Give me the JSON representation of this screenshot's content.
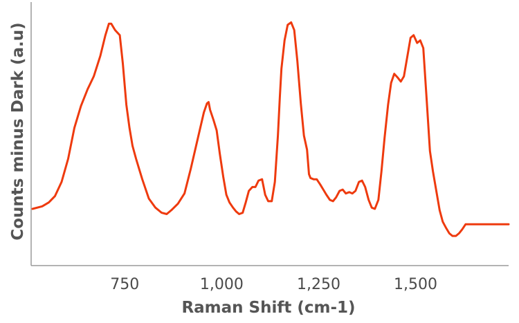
{
  "chart_data": {
    "type": "line",
    "xlabel": "Raman Shift (cm-1)",
    "ylabel": "Counts minus Dark (a.u)",
    "xlim": [
      512,
      1740
    ],
    "ylim": [
      0,
      1
    ],
    "x_ticks": [
      {
        "value": 750,
        "label": "750"
      },
      {
        "value": 1000,
        "label": "1,000"
      },
      {
        "value": 1250,
        "label": "1,250"
      },
      {
        "value": 1500,
        "label": "1,500"
      }
    ],
    "grid": false,
    "legend": "none",
    "color": "#ee3a0e",
    "series": [
      {
        "x": [
          512,
          537,
          554,
          570,
          587,
          604,
          620,
          637,
          654,
          670,
          687,
          700,
          709,
          715,
          725,
          737,
          745,
          754,
          762,
          770,
          779,
          787,
          795,
          812,
          829,
          845,
          858,
          870,
          887,
          904,
          920,
          937,
          954,
          962,
          966,
          970,
          979,
          987,
          995,
          1004,
          1012,
          1020,
          1029,
          1037,
          1045,
          1054,
          1062,
          1070,
          1079,
          1087,
          1095,
          1104,
          1112,
          1120,
          1129,
          1137,
          1145,
          1150,
          1154,
          1162,
          1170,
          1179,
          1187,
          1195,
          1204,
          1212,
          1220,
          1225,
          1229,
          1237,
          1245,
          1254,
          1262,
          1270,
          1279,
          1287,
          1295,
          1304,
          1312,
          1320,
          1329,
          1337,
          1345,
          1354,
          1362,
          1370,
          1379,
          1387,
          1395,
          1404,
          1412,
          1420,
          1429,
          1437,
          1445,
          1454,
          1462,
          1470,
          1479,
          1487,
          1495,
          1504,
          1512,
          1520,
          1529,
          1537,
          1545,
          1554,
          1562,
          1570,
          1579,
          1587,
          1595,
          1604,
          1612,
          1620,
          1629,
          1637,
          1645,
          1654,
          1662,
          1670,
          1679,
          1687,
          1695,
          1704,
          1712,
          1720,
          1729,
          1740
        ],
        "y": [
          0.215,
          0.225,
          0.24,
          0.265,
          0.32,
          0.41,
          0.53,
          0.615,
          0.68,
          0.73,
          0.81,
          0.89,
          0.935,
          0.935,
          0.91,
          0.89,
          0.78,
          0.62,
          0.53,
          0.46,
          0.41,
          0.37,
          0.33,
          0.255,
          0.22,
          0.2,
          0.195,
          0.21,
          0.235,
          0.275,
          0.37,
          0.48,
          0.59,
          0.625,
          0.63,
          0.6,
          0.56,
          0.52,
          0.43,
          0.34,
          0.27,
          0.24,
          0.22,
          0.205,
          0.195,
          0.2,
          0.24,
          0.285,
          0.3,
          0.3,
          0.325,
          0.33,
          0.27,
          0.245,
          0.245,
          0.32,
          0.5,
          0.65,
          0.76,
          0.87,
          0.93,
          0.94,
          0.91,
          0.79,
          0.625,
          0.5,
          0.445,
          0.35,
          0.335,
          0.33,
          0.33,
          0.31,
          0.29,
          0.27,
          0.25,
          0.245,
          0.26,
          0.285,
          0.29,
          0.275,
          0.28,
          0.275,
          0.285,
          0.32,
          0.325,
          0.3,
          0.25,
          0.22,
          0.215,
          0.25,
          0.36,
          0.49,
          0.62,
          0.705,
          0.74,
          0.725,
          0.71,
          0.73,
          0.81,
          0.88,
          0.89,
          0.86,
          0.87,
          0.84,
          0.63,
          0.44,
          0.36,
          0.28,
          0.21,
          0.165,
          0.14,
          0.12,
          0.11,
          0.11,
          0.12,
          0.135,
          0.155,
          0.155,
          0.155,
          0.155,
          0.155,
          0.155,
          0.155,
          0.155,
          0.155,
          0.155,
          0.155,
          0.155,
          0.155,
          0.155
        ]
      }
    ]
  }
}
